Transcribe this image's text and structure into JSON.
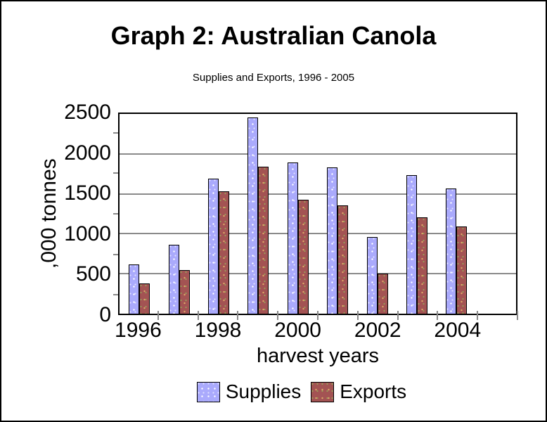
{
  "chart_data": {
    "type": "bar",
    "title": "Graph 2: Australian Canola",
    "subtitle": "Supplies and Exports, 1996 - 2005",
    "xlabel": "harvest years",
    "ylabel": ",000 tonnes",
    "ylim": [
      0,
      2500
    ],
    "yticks": [
      0,
      500,
      1000,
      1500,
      2000,
      2500
    ],
    "y_minor_tick_step": 250,
    "grid": true,
    "legend_position": "bottom-center",
    "categories": [
      "1996",
      "1997",
      "1998",
      "1999",
      "2000",
      "2001",
      "2002",
      "2003",
      "2004",
      "2005"
    ],
    "x_labeled_categories": [
      "1996",
      "1998",
      "2000",
      "2002",
      "2004"
    ],
    "series": [
      {
        "name": "Supplies",
        "color": "#aaaafc",
        "values": [
          620,
          860,
          1690,
          2460,
          1890,
          1830,
          960,
          1730,
          1570,
          null
        ]
      },
      {
        "name": "Exports",
        "color": "#a35353",
        "values": [
          380,
          545,
          1530,
          1840,
          1430,
          1360,
          500,
          1210,
          1090,
          null
        ]
      }
    ]
  },
  "colors": {
    "background": "#ffffff",
    "frame_border": "#000000",
    "gridline": "#8a8a8a",
    "supplies_fill": "#aaaafc",
    "supplies_dots": "#ffffff",
    "exports_fill": "#a35353",
    "exports_dots": "#dda767",
    "text": "#000000"
  }
}
